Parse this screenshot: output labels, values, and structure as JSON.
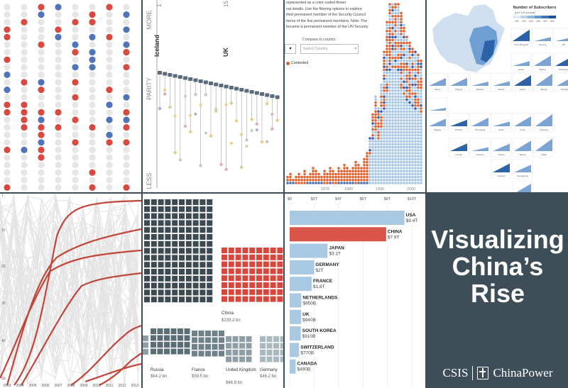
{
  "title": {
    "lines": [
      "Visualizing",
      "China’s",
      "Rise"
    ]
  },
  "brand": {
    "left": "CSIS",
    "right": "ChinaPower"
  },
  "panel_parity": {
    "axis_top": "MORE",
    "axis_mid": "PARITY",
    "axis_bottom": "LESS",
    "country_a": "Iceland",
    "country_b": "UK",
    "tick_a": "1",
    "tick_b": "15"
  },
  "panel_security": {
    "text_lines": [
      "represented as a color-coded flower",
      "nal details. Use the filtering options to explore",
      "ified permanent member of the Security Council",
      "tterns of the five permanent members. Note: The",
      "became a permanent member of the UN Security"
    ],
    "compare_label": "Compare to country:",
    "select_placeholder": "Select Country",
    "legend_contested": "Contested",
    "years": [
      "1970",
      "1980",
      "1990",
      "2000"
    ]
  },
  "panel_map": {
    "legend_title": "Number of Subscribers",
    "legend_subtitle": "(per 100 people)",
    "legend_ticks": [
      "100",
      "200",
      "300",
      "400",
      "500",
      "600"
    ],
    "provinces": [
      "Inner Mongolia",
      "Liaoning",
      "Jilin",
      "Hebei",
      "Beijing",
      "Shandong",
      "Gansu",
      "Ningxia",
      "Shaanxi",
      "Shanxi",
      "Henan",
      "Jiangsu",
      "Shanghai",
      "Tibet",
      "Xinjiang",
      "Sichuan",
      "Chongqing",
      "Hubei",
      "Anhui",
      "Zhejiang",
      "Yunnan",
      "Guizhou",
      "Hunan",
      "Jiangxi",
      "Fujian",
      "Guangxi",
      "Guangdong",
      "Hainan"
    ]
  },
  "panel_lines": {
    "y_ticks": [
      "1",
      "10",
      "20",
      "30",
      "40",
      "50"
    ],
    "x_ticks": [
      "2003",
      "2004",
      "2005",
      "2006",
      "2007",
      "2008",
      "2009",
      "2010",
      "2011",
      "2012",
      "2013"
    ]
  },
  "panel_waffle": {
    "items": [
      {
        "name": "China",
        "value": "$239.2 bn"
      },
      {
        "name": "Russia",
        "value": "$64.2 bn"
      },
      {
        "name": "France",
        "value": "$59.5 bn"
      },
      {
        "name": "United Kingdom",
        "value": "$46.9 bn"
      },
      {
        "name": "Germany",
        "value": "$46.2 bn"
      }
    ]
  },
  "chart_data": {
    "type": "bar",
    "orientation": "horizontal",
    "axis_ticks": [
      "$0",
      "$2T",
      "$4T",
      "$6T",
      "$8T",
      "$10T"
    ],
    "xlim": [
      0,
      10
    ],
    "categories": [
      "USA",
      "CHINA",
      "JAPAN",
      "GERMANY",
      "FRANCE",
      "NETHERLANDS",
      "UK",
      "SOUTH KOREA",
      "SWITZERLAND",
      "CANADA"
    ],
    "values": [
      9.4,
      7.9,
      3.1,
      2.0,
      1.8,
      0.95,
      0.94,
      0.91,
      0.77,
      0.49
    ],
    "value_labels": [
      "$9.4T",
      "$7.9T",
      "$3.1T",
      "$2T",
      "$1.8T",
      "$950B",
      "$940B",
      "$910B",
      "$770B",
      "$490B"
    ],
    "colors": {
      "default": "#a9c9e2",
      "highlight": "#d9554a"
    },
    "highlight": "CHINA"
  }
}
